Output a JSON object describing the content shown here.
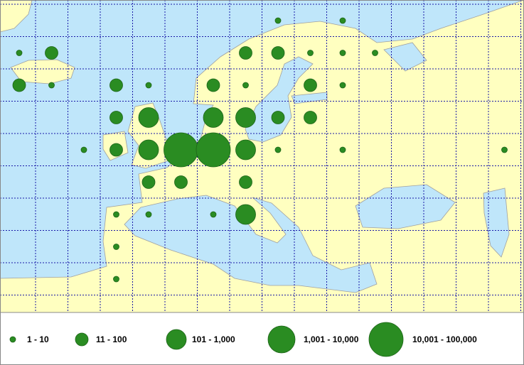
{
  "legend": {
    "classes": [
      "1 - 10",
      "11 - 100",
      "101 - 1,000",
      "1,001 - 10,000",
      "10,001 - 100,000"
    ]
  },
  "cells": [
    {
      "row": 0,
      "col": 8,
      "class": 0
    },
    {
      "row": 0,
      "col": 10,
      "class": 0
    },
    {
      "row": 1,
      "col": 0,
      "class": 0
    },
    {
      "row": 1,
      "col": 1,
      "class": 1
    },
    {
      "row": 1,
      "col": 7,
      "class": 1
    },
    {
      "row": 1,
      "col": 8,
      "class": 1
    },
    {
      "row": 1,
      "col": 9,
      "class": 0
    },
    {
      "row": 1,
      "col": 10,
      "class": 0
    },
    {
      "row": 1,
      "col": 11,
      "class": 0
    },
    {
      "row": 2,
      "col": 0,
      "class": 1
    },
    {
      "row": 2,
      "col": 1,
      "class": 0
    },
    {
      "row": 2,
      "col": 3,
      "class": 1
    },
    {
      "row": 2,
      "col": 4,
      "class": 0
    },
    {
      "row": 2,
      "col": 6,
      "class": 1
    },
    {
      "row": 2,
      "col": 7,
      "class": 0
    },
    {
      "row": 2,
      "col": 9,
      "class": 1
    },
    {
      "row": 2,
      "col": 10,
      "class": 0
    },
    {
      "row": 3,
      "col": 3,
      "class": 1
    },
    {
      "row": 3,
      "col": 4,
      "class": 2
    },
    {
      "row": 3,
      "col": 6,
      "class": 2
    },
    {
      "row": 3,
      "col": 7,
      "class": 2
    },
    {
      "row": 3,
      "col": 8,
      "class": 1
    },
    {
      "row": 3,
      "col": 9,
      "class": 1
    },
    {
      "row": 4,
      "col": 2,
      "class": 0
    },
    {
      "row": 4,
      "col": 3,
      "class": 1
    },
    {
      "row": 4,
      "col": 4,
      "class": 2
    },
    {
      "row": 4,
      "col": 5,
      "class": 4
    },
    {
      "row": 4,
      "col": 6,
      "class": 4
    },
    {
      "row": 4,
      "col": 7,
      "class": 2
    },
    {
      "row": 4,
      "col": 8,
      "class": 0
    },
    {
      "row": 4,
      "col": 10,
      "class": 0
    },
    {
      "row": 4,
      "col": 15,
      "class": 0
    },
    {
      "row": 5,
      "col": 4,
      "class": 1
    },
    {
      "row": 5,
      "col": 5,
      "class": 1
    },
    {
      "row": 5,
      "col": 7,
      "class": 1
    },
    {
      "row": 6,
      "col": 3,
      "class": 0
    },
    {
      "row": 6,
      "col": 4,
      "class": 0
    },
    {
      "row": 6,
      "col": 6,
      "class": 0
    },
    {
      "row": 6,
      "col": 7,
      "class": 2
    },
    {
      "row": 7,
      "col": 3,
      "class": 0
    },
    {
      "row": 8,
      "col": 3,
      "class": 0
    }
  ]
}
